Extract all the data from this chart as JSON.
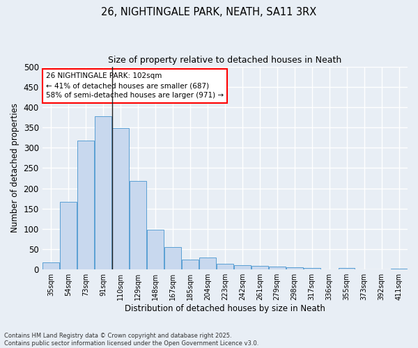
{
  "title_line1": "26, NIGHTINGALE PARK, NEATH, SA11 3RX",
  "title_line2": "Size of property relative to detached houses in Neath",
  "xlabel": "Distribution of detached houses by size in Neath",
  "ylabel": "Number of detached properties",
  "bar_color": "#c8d8ee",
  "bar_edge_color": "#5a9fd4",
  "categories": [
    "35sqm",
    "54sqm",
    "73sqm",
    "91sqm",
    "110sqm",
    "129sqm",
    "148sqm",
    "167sqm",
    "185sqm",
    "204sqm",
    "223sqm",
    "242sqm",
    "261sqm",
    "279sqm",
    "298sqm",
    "317sqm",
    "336sqm",
    "355sqm",
    "373sqm",
    "392sqm",
    "411sqm"
  ],
  "values": [
    18,
    167,
    317,
    378,
    349,
    218,
    98,
    55,
    25,
    30,
    14,
    11,
    9,
    7,
    5,
    3,
    0,
    3,
    0,
    0,
    2
  ],
  "ylim": [
    0,
    500
  ],
  "yticks": [
    0,
    50,
    100,
    150,
    200,
    250,
    300,
    350,
    400,
    450,
    500
  ],
  "annotation_line1": "26 NIGHTINGALE PARK: 102sqm",
  "annotation_line2": "← 41% of detached houses are smaller (687)",
  "annotation_line3": "58% of semi-detached houses are larger (971) →",
  "vline_x": 3.5,
  "bg_color": "#e8eef5",
  "plot_bg_color": "#e8eef5",
  "grid_color": "#ffffff",
  "footer_line1": "Contains HM Land Registry data © Crown copyright and database right 2025.",
  "footer_line2": "Contains public sector information licensed under the Open Government Licence v3.0."
}
